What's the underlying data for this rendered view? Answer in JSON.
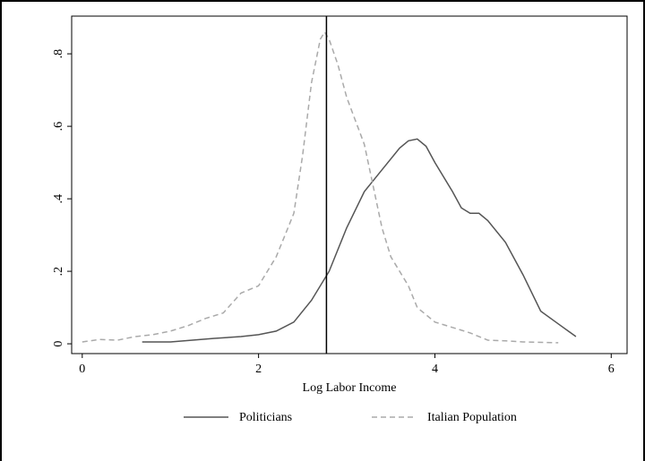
{
  "chart_data": {
    "type": "line",
    "xlabel": "Log Labor Income",
    "xlim": [
      -0.12,
      6.18
    ],
    "xticks": [
      0,
      2,
      4,
      6
    ],
    "ylim": [
      -0.027,
      0.904
    ],
    "yticks": [
      0,
      {
        "value": 0.2,
        "label": ".2"
      },
      {
        "value": 0.4,
        "label": ".4"
      },
      {
        "value": 0.6,
        "label": ".6"
      },
      {
        "value": 0.8,
        "label": ".8"
      }
    ],
    "xline": 2.77,
    "series": [
      {
        "name": "Politicians",
        "color": "#555555",
        "style": "solid",
        "x": [
          0.68,
          1.0,
          1.5,
          1.8,
          2.0,
          2.2,
          2.4,
          2.6,
          2.8,
          3.0,
          3.2,
          3.4,
          3.6,
          3.7,
          3.8,
          3.9,
          4.0,
          4.2,
          4.3,
          4.4,
          4.5,
          4.6,
          4.8,
          5.0,
          5.2,
          5.4,
          5.6
        ],
        "values": [
          0.005,
          0.005,
          0.015,
          0.02,
          0.025,
          0.035,
          0.06,
          0.12,
          0.2,
          0.32,
          0.42,
          0.48,
          0.54,
          0.56,
          0.565,
          0.545,
          0.5,
          0.42,
          0.375,
          0.36,
          0.36,
          0.34,
          0.28,
          0.19,
          0.09,
          0.055,
          0.02
        ]
      },
      {
        "name": "Italian Population",
        "color": "#aaaaaa",
        "style": "dashed",
        "x": [
          0,
          0.2,
          0.4,
          0.6,
          0.8,
          1.0,
          1.2,
          1.4,
          1.6,
          1.8,
          2.0,
          2.2,
          2.3,
          2.4,
          2.5,
          2.6,
          2.7,
          2.75,
          2.8,
          2.9,
          3.0,
          3.2,
          3.4,
          3.5,
          3.7,
          3.8,
          4.0,
          4.2,
          4.4,
          4.6,
          4.8,
          5.0,
          5.4
        ],
        "values": [
          0.005,
          0.012,
          0.01,
          0.02,
          0.025,
          0.035,
          0.05,
          0.07,
          0.085,
          0.14,
          0.16,
          0.24,
          0.3,
          0.36,
          0.52,
          0.72,
          0.84,
          0.86,
          0.84,
          0.77,
          0.68,
          0.55,
          0.32,
          0.24,
          0.16,
          0.1,
          0.06,
          0.045,
          0.03,
          0.01,
          0.008,
          0.005,
          0.003
        ]
      }
    ]
  }
}
